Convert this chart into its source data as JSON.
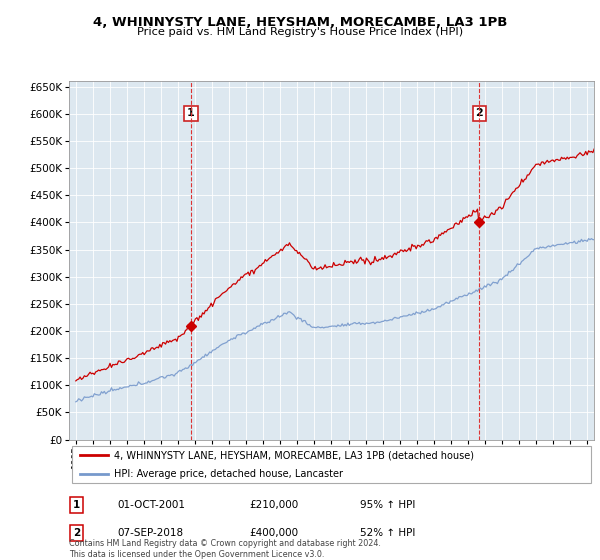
{
  "title": "4, WHINNYSTY LANE, HEYSHAM, MORECAMBE, LA3 1PB",
  "subtitle": "Price paid vs. HM Land Registry's House Price Index (HPI)",
  "hpi_label": "HPI: Average price, detached house, Lancaster",
  "property_label": "4, WHINNYSTY LANE, HEYSHAM, MORECAMBE, LA3 1PB (detached house)",
  "sale1_label": "1",
  "sale1_date": "01-OCT-2001",
  "sale1_price": "£210,000",
  "sale1_hpi": "95% ↑ HPI",
  "sale2_label": "2",
  "sale2_date": "07-SEP-2018",
  "sale2_price": "£400,000",
  "sale2_hpi": "52% ↑ HPI",
  "copyright": "Contains HM Land Registry data © Crown copyright and database right 2024.\nThis data is licensed under the Open Government Licence v3.0.",
  "hpi_color": "#7799cc",
  "property_color": "#cc0000",
  "vline_color": "#dd3333",
  "sale1_x": 2001.75,
  "sale2_x": 2018.67,
  "ylim_min": 0,
  "ylim_max": 660000,
  "xlim_min": 1994.6,
  "xlim_max": 2025.4,
  "bg_color": "#dde8f0",
  "plot_bg_color": "#dde8f0"
}
